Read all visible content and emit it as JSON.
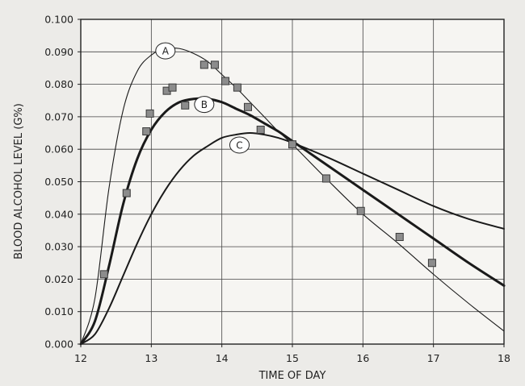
{
  "chart_data": {
    "type": "line",
    "title": "",
    "xlabel": "TIME OF DAY",
    "ylabel": "BLOOD ALCOHOL LEVEL (G%)",
    "xlim": [
      12,
      18
    ],
    "ylim": [
      0,
      0.1
    ],
    "x_ticks": [
      12,
      13,
      14,
      15,
      16,
      17,
      18
    ],
    "x_tick_labels": [
      "12",
      "13",
      "14",
      "15",
      "16",
      "17",
      "18"
    ],
    "y_ticks": [
      0,
      0.01,
      0.02,
      0.03,
      0.04,
      0.05,
      0.06,
      0.07,
      0.08,
      0.09,
      0.1
    ],
    "y_tick_labels": [
      "0.000",
      "0.010",
      "0.020",
      "0.030",
      "0.040",
      "0.050",
      "0.060",
      "0.070",
      "0.080",
      "0.090",
      "0.100"
    ],
    "grid": true,
    "series": [
      {
        "name": "A",
        "kind": "curve",
        "x": [
          12.0,
          12.2,
          12.4,
          12.6,
          12.8,
          13.0,
          13.2,
          13.4,
          13.6,
          13.8,
          14.0,
          14.2,
          14.4,
          14.6,
          14.8,
          15.0,
          15.5,
          16.0,
          16.5,
          17.0,
          17.5,
          18.0
        ],
        "y": [
          0.0,
          0.014,
          0.048,
          0.072,
          0.084,
          0.089,
          0.091,
          0.091,
          0.0895,
          0.087,
          0.083,
          0.079,
          0.0745,
          0.07,
          0.0655,
          0.0615,
          0.0505,
          0.04,
          0.031,
          0.0215,
          0.0125,
          0.004
        ]
      },
      {
        "name": "B",
        "kind": "curve",
        "x": [
          12.0,
          12.2,
          12.4,
          12.6,
          12.8,
          13.0,
          13.2,
          13.4,
          13.6,
          13.8,
          14.0,
          14.2,
          14.4,
          14.6,
          14.8,
          15.0,
          15.5,
          16.0,
          16.5,
          17.0,
          17.5,
          18.0
        ],
        "y": [
          0.0,
          0.007,
          0.024,
          0.043,
          0.057,
          0.066,
          0.0715,
          0.0745,
          0.0755,
          0.0755,
          0.0745,
          0.0725,
          0.0705,
          0.068,
          0.0655,
          0.0625,
          0.055,
          0.0475,
          0.04,
          0.0325,
          0.025,
          0.018
        ]
      },
      {
        "name": "C",
        "kind": "curve",
        "x": [
          12.0,
          12.2,
          12.4,
          12.6,
          12.8,
          13.0,
          13.2,
          13.4,
          13.6,
          13.8,
          14.0,
          14.2,
          14.4,
          14.6,
          14.8,
          15.0,
          15.5,
          16.0,
          16.5,
          17.0,
          17.5,
          18.0
        ],
        "y": [
          0.0,
          0.003,
          0.011,
          0.021,
          0.031,
          0.04,
          0.0475,
          0.0535,
          0.058,
          0.061,
          0.0635,
          0.0645,
          0.065,
          0.0645,
          0.0635,
          0.062,
          0.0575,
          0.0525,
          0.0475,
          0.0425,
          0.0385,
          0.0355
        ]
      },
      {
        "kind": "points",
        "x": [
          12.33,
          12.65,
          12.93,
          12.98,
          13.22,
          13.3,
          13.48,
          13.75,
          13.9,
          14.05,
          14.22,
          14.37,
          14.55,
          15.0,
          15.48,
          15.97,
          16.52,
          16.98
        ],
        "y": [
          0.0215,
          0.0465,
          0.0655,
          0.071,
          0.078,
          0.079,
          0.0735,
          0.086,
          0.086,
          0.081,
          0.079,
          0.073,
          0.066,
          0.0615,
          0.051,
          0.041,
          0.033,
          0.025
        ]
      }
    ],
    "curve_labels": [
      {
        "text": "A",
        "x": 13.2,
        "y": 0.0903
      },
      {
        "text": "B",
        "x": 13.75,
        "y": 0.0738
      },
      {
        "text": "C",
        "x": 14.25,
        "y": 0.0613
      }
    ]
  }
}
